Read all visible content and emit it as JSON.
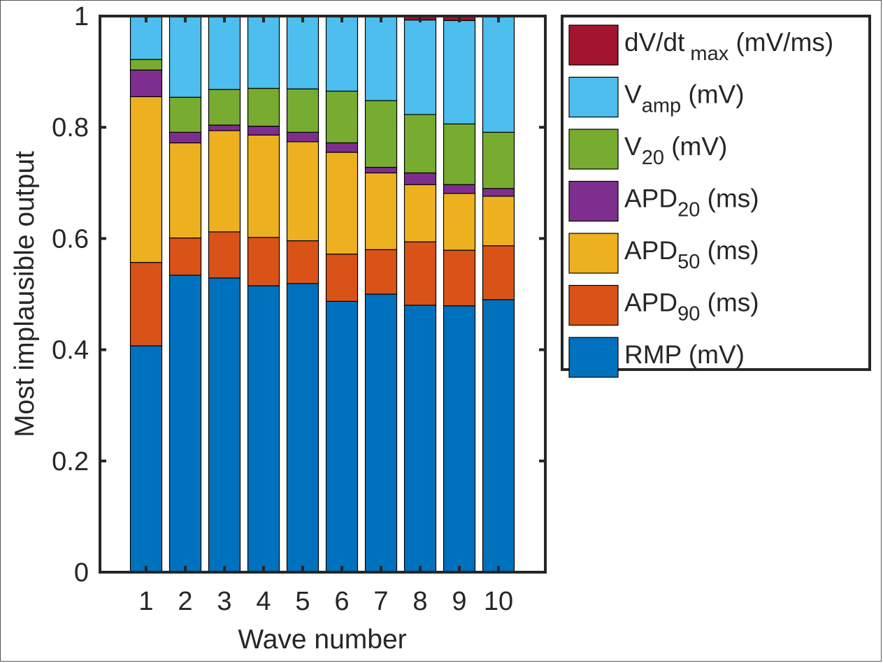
{
  "chart_data": {
    "type": "bar",
    "stacked": true,
    "xlabel": "Wave number",
    "ylabel": "Most implausible output",
    "ylim": [
      0,
      1
    ],
    "yticks": [
      "0",
      "0.2",
      "0.4",
      "0.6",
      "0.8",
      "1"
    ],
    "categories": [
      "1",
      "2",
      "3",
      "4",
      "5",
      "6",
      "7",
      "8",
      "9",
      "10"
    ],
    "grid": false,
    "legend_position": "outside-top-right",
    "series": [
      {
        "name": "RMP (mV)",
        "label_main": "RMP (mV)",
        "label_sub": "",
        "label_tail": "",
        "color": "#0072BD",
        "values": [
          0.407,
          0.534,
          0.529,
          0.515,
          0.519,
          0.487,
          0.5,
          0.48,
          0.479,
          0.49
        ]
      },
      {
        "name": "APD90 (ms)",
        "label_main": "APD",
        "label_sub": "90",
        "label_tail": " (ms)",
        "color": "#D95319",
        "values": [
          0.15,
          0.067,
          0.083,
          0.087,
          0.077,
          0.085,
          0.08,
          0.114,
          0.1,
          0.097
        ]
      },
      {
        "name": "APD50 (ms)",
        "label_main": "APD",
        "label_sub": "50",
        "label_tail": " (ms)",
        "color": "#EDB120",
        "values": [
          0.298,
          0.171,
          0.182,
          0.184,
          0.178,
          0.183,
          0.138,
          0.103,
          0.102,
          0.089
        ]
      },
      {
        "name": "APD20 (ms)",
        "label_main": "APD",
        "label_sub": "20",
        "label_tail": " (ms)",
        "color": "#7E2F8E",
        "values": [
          0.048,
          0.019,
          0.01,
          0.016,
          0.017,
          0.017,
          0.01,
          0.021,
          0.016,
          0.014
        ]
      },
      {
        "name": "V20 (mV)",
        "label_main": "V",
        "label_sub": "20",
        "label_tail": " (mV)",
        "color": "#77AC30",
        "values": [
          0.019,
          0.063,
          0.064,
          0.068,
          0.078,
          0.093,
          0.12,
          0.105,
          0.109,
          0.101
        ]
      },
      {
        "name": "Vamp (mV)",
        "label_main": "V",
        "label_sub": "amp",
        "label_tail": " (mV)",
        "color": "#4DBEEE",
        "values": [
          0.078,
          0.146,
          0.132,
          0.13,
          0.131,
          0.135,
          0.152,
          0.17,
          0.186,
          0.209
        ]
      },
      {
        "name": "dV/dtmax (mV/ms)",
        "label_main": "dV/dt",
        "label_sub": "max",
        "label_tail": " (mV/ms)",
        "color": "#A2142F",
        "values": [
          0,
          0,
          0,
          0,
          0,
          0,
          0,
          0.007,
          0.008,
          0
        ]
      }
    ]
  }
}
